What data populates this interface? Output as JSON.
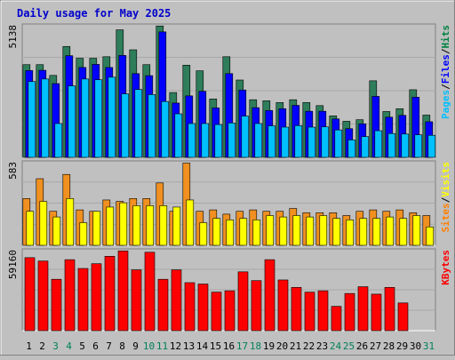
{
  "chart_data": {
    "type": "bar",
    "title": "Daily usage for May 2025",
    "days": [
      "1",
      "2",
      "3",
      "4",
      "5",
      "6",
      "7",
      "8",
      "9",
      "10",
      "11",
      "12",
      "13",
      "14",
      "15",
      "16",
      "17",
      "18",
      "19",
      "20",
      "21",
      "22",
      "23",
      "24",
      "25",
      "26",
      "27",
      "28",
      "29",
      "30",
      "31"
    ],
    "weekend_days": [
      "3",
      "4",
      "10",
      "11",
      "17",
      "18",
      "24",
      "25",
      "31"
    ],
    "panels": [
      {
        "id": "top",
        "ymax_label": "5138",
        "ymax": 5138,
        "axis_labels": [
          {
            "text": "Pages",
            "color": "#00c0ff"
          },
          {
            "text": "/",
            "color": "#000000"
          },
          {
            "text": "Files",
            "color": "#0000ff"
          },
          {
            "text": "/",
            "color": "#000000"
          },
          {
            "text": "Hits",
            "color": "#008040"
          }
        ],
        "series": [
          {
            "name": "Hits",
            "color": "#2e7d5b",
            "values": [
              3620,
              3620,
              3200,
              4330,
              3870,
              3870,
              3930,
              4980,
              4200,
              3620,
              5130,
              2530,
              3600,
              3380,
              2280,
              3930,
              3020,
              2250,
              2210,
              2140,
              2250,
              2140,
              2020,
              1620,
              1410,
              1470,
              2990,
              1790,
              1900,
              2640,
              1650
            ]
          },
          {
            "name": "Files",
            "color": "#0000ff",
            "values": [
              3390,
              3400,
              2880,
              3970,
              3510,
              3630,
              3510,
              3980,
              3270,
              3190,
              4900,
              2120,
              2400,
              2580,
              1930,
              3270,
              2630,
              1940,
              1830,
              1900,
              2030,
              1800,
              1800,
              1500,
              1120,
              1310,
              2380,
              1570,
              1640,
              2350,
              1390
            ]
          },
          {
            "name": "Pages",
            "color": "#00c0ff",
            "values": [
              2960,
              3060,
              1320,
              2790,
              3060,
              3030,
              3130,
              2480,
              2650,
              2450,
              2180,
              1700,
              1320,
              1320,
              1280,
              1340,
              1610,
              1320,
              1230,
              1180,
              1240,
              1180,
              1190,
              1070,
              680,
              810,
              1040,
              930,
              910,
              880,
              860
            ]
          }
        ]
      },
      {
        "id": "middle",
        "ymax_label": "583",
        "ymax": 583,
        "axis_labels": [
          {
            "text": "Sites",
            "color": "#ff8000"
          },
          {
            "text": "/",
            "color": "#000000"
          },
          {
            "text": "Visits",
            "color": "#ffff00"
          }
        ],
        "series": [
          {
            "name": "Visits",
            "color": "#f09020",
            "values": [
              330,
              470,
              240,
              500,
              250,
              240,
              320,
              310,
              330,
              330,
              440,
              240,
              580,
              240,
              250,
              220,
              240,
              250,
              240,
              240,
              260,
              230,
              230,
              230,
              210,
              240,
              250,
              240,
              250,
              230,
              210
            ]
          },
          {
            "name": "Sites",
            "color": "#ffff00",
            "values": [
              240,
              310,
              200,
              330,
              160,
              240,
              270,
              300,
              280,
              280,
              280,
              270,
              320,
              160,
              190,
              180,
              190,
              180,
              210,
              200,
              210,
              200,
              210,
              190,
              180,
              190,
              190,
              200,
              190,
              210,
              130
            ]
          }
        ]
      },
      {
        "id": "bottom",
        "ymax_label": "59160",
        "ymax": 59160,
        "axis_labels": [
          {
            "text": "KBytes",
            "color": "#ff0000"
          }
        ],
        "series": [
          {
            "name": "KBytes",
            "color": "#ff0000",
            "values": [
              54000,
              51500,
              38000,
              52500,
              46000,
              49500,
              55000,
              59000,
              45000,
              58000,
              38000,
              45000,
              35500,
              34500,
              28500,
              29500,
              43500,
              37000,
              52500,
              37500,
              32000,
              28500,
              29500,
              18000,
              27500,
              32500,
              27000,
              32000,
              20500,
              0,
              0
            ]
          }
        ]
      }
    ]
  }
}
